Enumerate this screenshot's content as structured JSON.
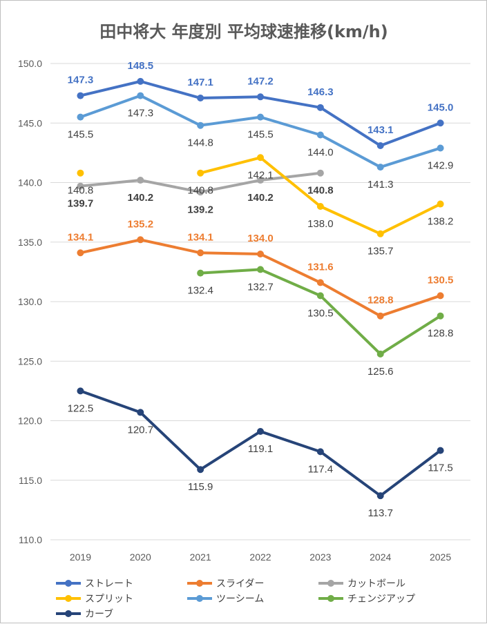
{
  "chart_data": {
    "type": "line",
    "title": "田中将大 年度別 平均球速推移(km/h)",
    "categories": [
      "2019",
      "2020",
      "2021",
      "2022",
      "2023",
      "2024",
      "2025"
    ],
    "ylim": [
      110,
      150
    ],
    "yticks": [
      "110.0",
      "115.0",
      "120.0",
      "125.0",
      "130.0",
      "135.0",
      "140.0",
      "145.0",
      "150.0"
    ],
    "grid": true,
    "legend_position": "bottom",
    "series": [
      {
        "name": "ストレート",
        "color": "#4472C4",
        "values": [
          147.3,
          148.5,
          147.1,
          147.2,
          146.3,
          143.1,
          145.0
        ],
        "labels": [
          "147.3",
          "148.5",
          "147.1",
          "147.2",
          "146.3",
          "143.1",
          "145.0"
        ],
        "label_color": "#4472C4",
        "label_weight": "bold",
        "label_pos": [
          "above",
          "above",
          "above",
          "above",
          "above",
          "above",
          "above"
        ]
      },
      {
        "name": "スライダー",
        "color": "#ED7D31",
        "values": [
          134.1,
          135.2,
          134.1,
          134.0,
          131.6,
          128.8,
          130.5
        ],
        "labels": [
          "134.1",
          "135.2",
          "134.1",
          "134.0",
          "131.6",
          "128.8",
          "130.5"
        ],
        "label_color": "#ED7D31",
        "label_weight": "bold",
        "label_pos": [
          "above",
          "above",
          "above",
          "above",
          "above",
          "above",
          "above"
        ]
      },
      {
        "name": "カットボール",
        "color": "#A5A5A5",
        "values": [
          139.7,
          140.2,
          139.2,
          140.2,
          140.8,
          null,
          null
        ],
        "labels": [
          "139.7",
          "140.2",
          "139.2",
          "140.2",
          "140.8",
          "",
          ""
        ],
        "label_color": "#404040",
        "label_weight": "bold",
        "label_pos": [
          "below",
          "below",
          "below",
          "below",
          "below",
          "below",
          "below"
        ]
      },
      {
        "name": "スプリット",
        "color": "#FFC000",
        "values": [
          140.8,
          null,
          140.8,
          142.1,
          138.0,
          135.7,
          138.2
        ],
        "labels": [
          "140.8",
          "",
          "140.8",
          "142.1",
          "138.0",
          "135.7",
          "138.2"
        ],
        "label_color": "#404040",
        "label_weight": "normal",
        "label_pos": [
          "below",
          "below",
          "below",
          "below",
          "below",
          "below",
          "below"
        ]
      },
      {
        "name": "ツーシーム",
        "color": "#5B9BD5",
        "values": [
          145.5,
          147.3,
          144.8,
          145.5,
          144.0,
          141.3,
          142.9
        ],
        "labels": [
          "145.5",
          "147.3",
          "144.8",
          "145.5",
          "144.0",
          "141.3",
          "142.9"
        ],
        "label_color": "#404040",
        "label_weight": "normal",
        "label_pos": [
          "below",
          "below",
          "below",
          "below",
          "below",
          "below",
          "below"
        ]
      },
      {
        "name": "チェンジアップ",
        "color": "#70AD47",
        "values": [
          null,
          null,
          132.4,
          132.7,
          130.5,
          125.6,
          128.8
        ],
        "labels": [
          "",
          "",
          "132.4",
          "132.7",
          "130.5",
          "125.6",
          "128.8"
        ],
        "label_color": "#404040",
        "label_weight": "normal",
        "label_pos": [
          "below",
          "below",
          "below",
          "below",
          "below",
          "below",
          "below"
        ]
      },
      {
        "name": "カーブ",
        "color": "#264478",
        "values": [
          122.5,
          120.7,
          115.9,
          119.1,
          117.4,
          113.7,
          117.5
        ],
        "labels": [
          "122.5",
          "120.7",
          "115.9",
          "119.1",
          "117.4",
          "113.7",
          "117.5"
        ],
        "label_color": "#404040",
        "label_weight": "normal",
        "label_pos": [
          "below",
          "below",
          "below",
          "below",
          "below",
          "below",
          "below"
        ]
      }
    ]
  }
}
